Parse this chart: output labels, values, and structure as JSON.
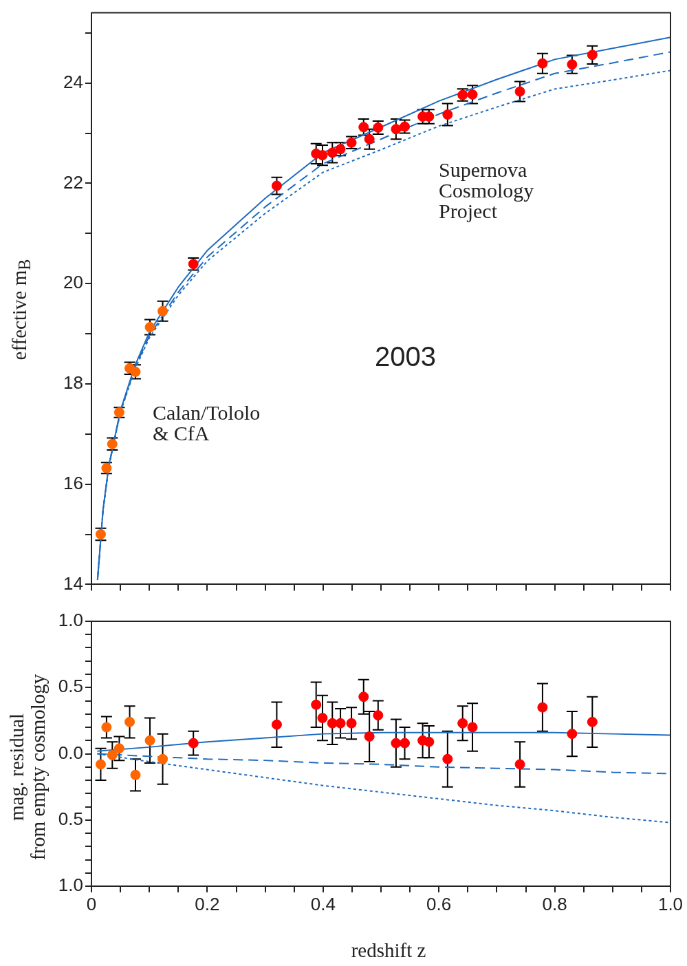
{
  "chart_data": [
    {
      "type": "scatter",
      "ylabel": "effective m$_{B}$",
      "annotations": [
        "Supernova\nCosmology\nProject",
        "2003",
        "Calan/Tololo\n& CfA"
      ],
      "tick_labels": "y",
      "xlim": [
        0,
        1
      ],
      "xticks": [
        {
          "value": 0,
          "label": null
        },
        {
          "value": 0.05,
          "label": null
        },
        {
          "value": 0.1,
          "label": null
        },
        {
          "value": 0.15,
          "label": null
        },
        {
          "value": 0.2,
          "label": null
        },
        {
          "value": 0.25,
          "label": null
        },
        {
          "value": 0.3,
          "label": null
        },
        {
          "value": 0.35,
          "label": null
        },
        {
          "value": 0.4,
          "label": null
        },
        {
          "value": 0.45,
          "label": null
        },
        {
          "value": 0.5,
          "label": null
        },
        {
          "value": 0.55,
          "label": null
        },
        {
          "value": 0.6,
          "label": null
        },
        {
          "value": 0.65,
          "label": null
        },
        {
          "value": 0.7,
          "label": null
        },
        {
          "value": 0.75,
          "label": null
        },
        {
          "value": 0.8,
          "label": null
        },
        {
          "value": 0.85,
          "label": null
        },
        {
          "value": 0.9,
          "label": null
        },
        {
          "value": 0.95,
          "label": null
        },
        {
          "value": 1,
          "label": null
        }
      ],
      "ylim": [
        14,
        25.4
      ],
      "yticks": [
        14,
        {
          "value": 15,
          "label": null
        },
        16,
        {
          "value": 17,
          "label": null
        },
        18,
        {
          "value": 19,
          "label": null
        },
        20,
        {
          "value": 21,
          "label": null
        },
        22,
        {
          "value": 23,
          "label": null
        },
        24,
        {
          "value": 25,
          "label": null
        }
      ],
      "series": [
        {
          "type": "line",
          "color": "#1f6cc0",
          "line_style": "solid",
          "x": [
            0.0105,
            0.02,
            0.03,
            0.05,
            0.075,
            0.1,
            0.15,
            0.2,
            0.3,
            0.4,
            0.5,
            0.6,
            0.7,
            0.8,
            0.9,
            1.0
          ],
          "values": [
            14.09,
            15.49,
            16.37,
            17.47,
            18.36,
            19.03,
            19.93,
            20.66,
            21.7,
            22.61,
            23.12,
            23.64,
            24.07,
            24.47,
            24.69,
            24.91
          ]
        },
        {
          "type": "line",
          "color": "#1f6cc0",
          "line_style": "dashed",
          "x": [
            0.0105,
            0.02,
            0.03,
            0.05,
            0.075,
            0.1,
            0.15,
            0.2,
            0.3,
            0.4,
            0.5,
            0.6,
            0.7,
            0.8,
            0.9,
            1.0
          ],
          "values": [
            14.09,
            15.48,
            16.36,
            17.45,
            18.32,
            18.96,
            19.83,
            20.53,
            21.53,
            22.39,
            22.88,
            23.38,
            23.8,
            24.19,
            24.4,
            24.62
          ]
        },
        {
          "type": "line",
          "color": "#1f6cc0",
          "line_style": "dotted",
          "x": [
            0.0105,
            0.02,
            0.03,
            0.05,
            0.075,
            0.1,
            0.15,
            0.2,
            0.3,
            0.4,
            0.5,
            0.6,
            0.7,
            0.8,
            0.9,
            1.0
          ],
          "values": [
            14.09,
            15.48,
            16.35,
            17.43,
            18.29,
            18.92,
            19.77,
            20.45,
            21.4,
            22.22,
            22.67,
            23.14,
            23.52,
            23.88,
            24.06,
            24.25
          ]
        },
        {
          "type": "scatter",
          "marker": "circle",
          "color": "#ff6600",
          "x": [
            0.016,
            0.026,
            0.036,
            0.048,
            0.066,
            0.076,
            0.101,
            0.123
          ],
          "values": [
            15.0,
            16.32,
            16.8,
            17.43,
            18.31,
            18.24,
            19.13,
            19.45
          ],
          "errors": [
            0.12,
            0.11,
            0.12,
            0.1,
            0.12,
            0.14,
            0.15,
            0.2
          ]
        },
        {
          "type": "scatter",
          "marker": "circle",
          "color": "#ff0000",
          "x": [
            0.176,
            0.32,
            0.388,
            0.399,
            0.416,
            0.43,
            0.449,
            0.47,
            0.48,
            0.495,
            0.526,
            0.541,
            0.572,
            0.583,
            0.615,
            0.641,
            0.658,
            0.74,
            0.779,
            0.83,
            0.865
          ],
          "values": [
            20.39,
            21.95,
            22.59,
            22.56,
            22.61,
            22.68,
            22.81,
            23.12,
            22.88,
            23.11,
            23.08,
            23.13,
            23.33,
            23.33,
            23.37,
            23.76,
            23.77,
            23.83,
            24.39,
            24.37,
            24.56
          ],
          "errors": [
            0.12,
            0.17,
            0.2,
            0.2,
            0.2,
            0.13,
            0.12,
            0.16,
            0.2,
            0.13,
            0.2,
            0.13,
            0.14,
            0.14,
            0.22,
            0.12,
            0.18,
            0.2,
            0.2,
            0.18,
            0.18
          ]
        }
      ]
    },
    {
      "type": "scatter",
      "xlabel": "redshift z",
      "ylabel": "mag. residual\nfrom empty cosmology",
      "xlim": [
        0,
        1
      ],
      "xticks": [
        0.0,
        {
          "value": 0.05,
          "label": null
        },
        {
          "value": 0.1,
          "label": null
        },
        {
          "value": 0.15,
          "label": null
        },
        {
          "value": 0.2,
          "label": "0.2"
        },
        {
          "value": 0.25,
          "label": null
        },
        {
          "value": 0.3,
          "label": null
        },
        {
          "value": 0.35,
          "label": null
        },
        {
          "value": 0.4,
          "label": "0.4"
        },
        {
          "value": 0.45,
          "label": null
        },
        {
          "value": 0.5,
          "label": null
        },
        {
          "value": 0.55,
          "label": null
        },
        {
          "value": 0.6,
          "label": "0.6"
        },
        {
          "value": 0.65,
          "label": null
        },
        {
          "value": 0.7,
          "label": null
        },
        {
          "value": 0.75,
          "label": null
        },
        {
          "value": 0.8,
          "label": "0.8"
        },
        {
          "value": 0.85,
          "label": null
        },
        {
          "value": 0.9,
          "label": null
        },
        {
          "value": 0.95,
          "label": null
        },
        {
          "value": 1,
          "label": "1.0"
        }
      ],
      "ylim": [
        -1,
        1
      ],
      "yticks": [
        {
          "value": -1,
          "label": "1.0"
        },
        {
          "value": -0.9,
          "label": null
        },
        {
          "value": -0.8,
          "label": null
        },
        {
          "value": -0.7,
          "label": null
        },
        {
          "value": -0.6,
          "label": null
        },
        {
          "value": -0.5,
          "label": "0.5"
        },
        {
          "value": -0.4,
          "label": null
        },
        {
          "value": -0.3,
          "label": null
        },
        {
          "value": -0.2,
          "label": null
        },
        {
          "value": -0.1,
          "label": null
        },
        {
          "value": 0,
          "label": "0.0"
        },
        {
          "value": 0.1,
          "label": null
        },
        {
          "value": 0.2,
          "label": null
        },
        {
          "value": 0.3,
          "label": null
        },
        {
          "value": 0.4,
          "label": null
        },
        {
          "value": 0.5,
          "label": "0.5"
        },
        {
          "value": 0.6,
          "label": null
        },
        {
          "value": 0.7,
          "label": null
        },
        {
          "value": 0.8,
          "label": null
        },
        {
          "value": 0.9,
          "label": null
        },
        {
          "value": 1,
          "label": "1.0"
        }
      ],
      "series": [
        {
          "type": "line",
          "color": "#1f6cc0",
          "line_style": "solid",
          "x": [
            0.01,
            0.1,
            0.2,
            0.3,
            0.4,
            0.5,
            0.6,
            0.7,
            0.8,
            0.9,
            1.0
          ],
          "values": [
            0.02,
            0.05,
            0.09,
            0.12,
            0.15,
            0.16,
            0.16,
            0.16,
            0.16,
            0.15,
            0.14
          ]
        },
        {
          "type": "line",
          "color": "#1f6cc0",
          "line_style": "dashed",
          "x": [
            0.01,
            0.1,
            0.2,
            0.3,
            0.4,
            0.5,
            0.6,
            0.7,
            0.8,
            0.9,
            1.0
          ],
          "values": [
            0,
            -0.02,
            -0.04,
            -0.05,
            -0.07,
            -0.08,
            -0.1,
            -0.11,
            -0.12,
            -0.14,
            -0.15
          ]
        },
        {
          "type": "line",
          "color": "#1f6cc0",
          "line_style": "dotted",
          "x": [
            0.01,
            0.1,
            0.2,
            0.3,
            0.4,
            0.5,
            0.6,
            0.7,
            0.8,
            0.9,
            1.0
          ],
          "values": [
            0,
            -0.06,
            -0.12,
            -0.18,
            -0.24,
            -0.29,
            -0.34,
            -0.39,
            -0.43,
            -0.48,
            -0.52
          ]
        },
        {
          "type": "scatter",
          "marker": "circle",
          "color": "#ff6600",
          "x": [
            0.016,
            0.026,
            0.036,
            0.048,
            0.066,
            0.076,
            0.101,
            0.123
          ],
          "values": [
            -0.08,
            0.2,
            -0.01,
            0.04,
            0.24,
            -0.16,
            0.1,
            -0.04
          ],
          "errors": [
            0.12,
            0.08,
            0.1,
            0.09,
            0.12,
            0.12,
            0.17,
            0.19
          ]
        },
        {
          "type": "scatter",
          "marker": "circle",
          "color": "#ff0000",
          "x": [
            0.176,
            0.32,
            0.388,
            0.399,
            0.416,
            0.43,
            0.449,
            0.47,
            0.48,
            0.495,
            0.526,
            0.541,
            0.572,
            0.583,
            0.615,
            0.641,
            0.658,
            0.74,
            0.779,
            0.83,
            0.865
          ],
          "values": [
            0.08,
            0.22,
            0.37,
            0.27,
            0.23,
            0.23,
            0.23,
            0.43,
            0.13,
            0.29,
            0.08,
            0.08,
            0.1,
            0.09,
            -0.04,
            0.23,
            0.2,
            -0.08,
            0.35,
            0.15,
            0.24
          ],
          "errors": [
            0.09,
            0.17,
            0.17,
            0.17,
            0.16,
            0.11,
            0.12,
            0.13,
            0.19,
            0.11,
            0.18,
            0.12,
            0.13,
            0.12,
            0.21,
            0.13,
            0.18,
            0.17,
            0.18,
            0.17,
            0.19
          ]
        }
      ]
    }
  ]
}
